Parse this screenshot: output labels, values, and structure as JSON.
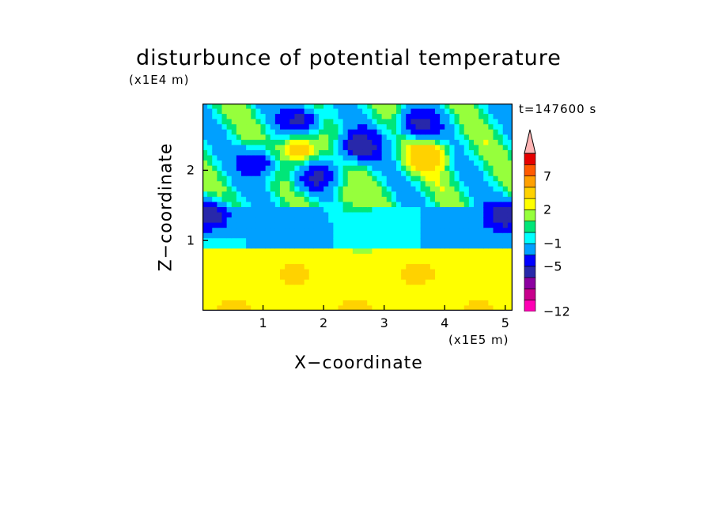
{
  "chart_data": {
    "type": "heatmap",
    "title": "disturbunce of potential temperature",
    "xlabel": "X−coordinate",
    "ylabel": "Z−coordinate",
    "x_unit_label": "(x1E5 m)",
    "y_unit_label": "(x1E4 m)",
    "time_label": "t=147600 s",
    "xlim": [
      0,
      5.12
    ],
    "ylim": [
      0,
      2.95
    ],
    "x_ticks": [
      "1",
      "2",
      "3",
      "4",
      "5"
    ],
    "x_tick_values": [
      1,
      2,
      3,
      4,
      5
    ],
    "y_ticks": [
      "1",
      "2"
    ],
    "y_tick_values": [
      1,
      2
    ],
    "colorbar": {
      "levels": [
        -12,
        -11,
        -9,
        -7,
        -5,
        -3,
        -1,
        0,
        1,
        2,
        3,
        5,
        7,
        9,
        11
      ],
      "tick_labels": [
        "−12",
        "−5",
        "−1",
        "2",
        "7"
      ],
      "tick_values": [
        -12,
        -5,
        -1,
        2,
        7
      ],
      "colors": [
        "#ff00b4",
        "#c8008c",
        "#8c00a0",
        "#2828aa",
        "#0000ff",
        "#00a0ff",
        "#00ffff",
        "#00e678",
        "#96ff3c",
        "#ffff00",
        "#ffd200",
        "#ffa000",
        "#ff5a00",
        "#e60000",
        "#ffb4b4"
      ],
      "extend": "max"
    },
    "features": [
      {
        "x": 2.6,
        "z": 2.35,
        "value": -7
      },
      {
        "x": 1.6,
        "z": 2.7,
        "value": -6
      },
      {
        "x": 3.6,
        "z": 2.65,
        "value": -6
      },
      {
        "x": 0.9,
        "z": 2.1,
        "value": -5
      },
      {
        "x": 1.9,
        "z": 1.9,
        "value": -6
      },
      {
        "x": 0.1,
        "z": 1.35,
        "value": -7
      },
      {
        "x": 5.0,
        "z": 1.35,
        "value": -7
      },
      {
        "x": 2.6,
        "z": 1.1,
        "value": -1
      },
      {
        "x": 2.5,
        "z": 1.65,
        "value": 2
      },
      {
        "x": 2.5,
        "z": 0.45,
        "value": 3
      },
      {
        "x": 3.7,
        "z": 2.2,
        "value": 5
      },
      {
        "x": 1.6,
        "z": 2.3,
        "value": 4
      }
    ]
  }
}
